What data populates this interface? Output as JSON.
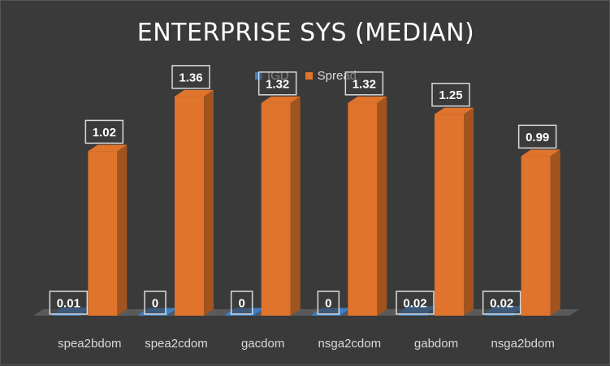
{
  "chart_data": {
    "type": "bar",
    "title": "ENTERPRISE SYS (MEDIAN)",
    "categories": [
      "spea2bdom",
      "spea2cdom",
      "gacdom",
      "nsga2cdom",
      "gabdom",
      "nsga2bdom"
    ],
    "series": [
      {
        "name": "IGD",
        "values": [
          0.01,
          0,
          0,
          0,
          0.02,
          0.02
        ],
        "labels": [
          "0.01",
          "0",
          "0",
          "0",
          "0.02",
          "0.02"
        ],
        "color": "#3e7fc5"
      },
      {
        "name": "Spread",
        "values": [
          1.02,
          1.36,
          1.32,
          1.32,
          1.25,
          0.99
        ],
        "labels": [
          "1.02",
          "1.36",
          "1.32",
          "1.32",
          "1.25",
          "0.99"
        ],
        "color": "#e0742c"
      }
    ],
    "ylim": [
      0,
      1.45
    ],
    "grid": false,
    "legend_position": "top",
    "style": "3d-column"
  }
}
